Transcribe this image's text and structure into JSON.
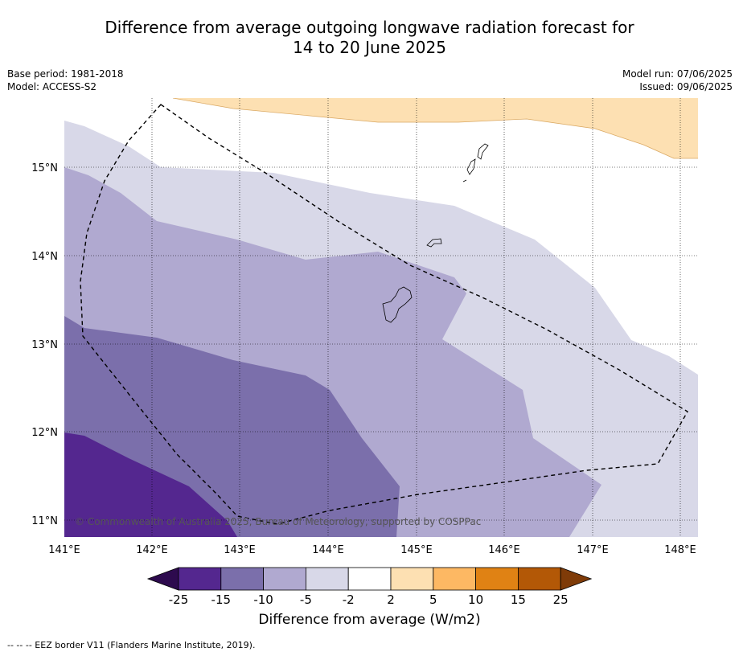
{
  "title_line1": "Difference from average outgoing longwave radiation forecast for",
  "title_line2": "14 to 20 June 2025",
  "meta": {
    "base_period": "Base period: 1981-2018",
    "model": "Model: ACCESS-S2",
    "model_run": "Model run: 07/06/2025",
    "issued": "Issued: 09/06/2025"
  },
  "map": {
    "lon_ticks": [
      "141°E",
      "142°E",
      "143°E",
      "144°E",
      "145°E",
      "146°E",
      "147°E",
      "148°E"
    ],
    "lat_ticks": [
      "15°N",
      "14°N",
      "13°N",
      "12°N",
      "11°N"
    ],
    "credit": "© Commonwealth of Australia 2025, Bureau of Meteorology, supported by COSPPac"
  },
  "colorbar": {
    "labels": [
      "-25",
      "-15",
      "-10",
      "-5",
      "-2",
      "2",
      "5",
      "10",
      "15",
      "25"
    ],
    "colors": [
      "#2d0a4e",
      "#54278f",
      "#7b6fab",
      "#b0a9d0",
      "#d8d8e8",
      "#ffffff",
      "#fde0b2",
      "#fdb863",
      "#e08214",
      "#b35806",
      "#7f3b08"
    ],
    "title": "Difference from average (W/m2)"
  },
  "footnote": "--  --  -- EEZ border V11 (Flanders Marine Institute, 2019)."
}
